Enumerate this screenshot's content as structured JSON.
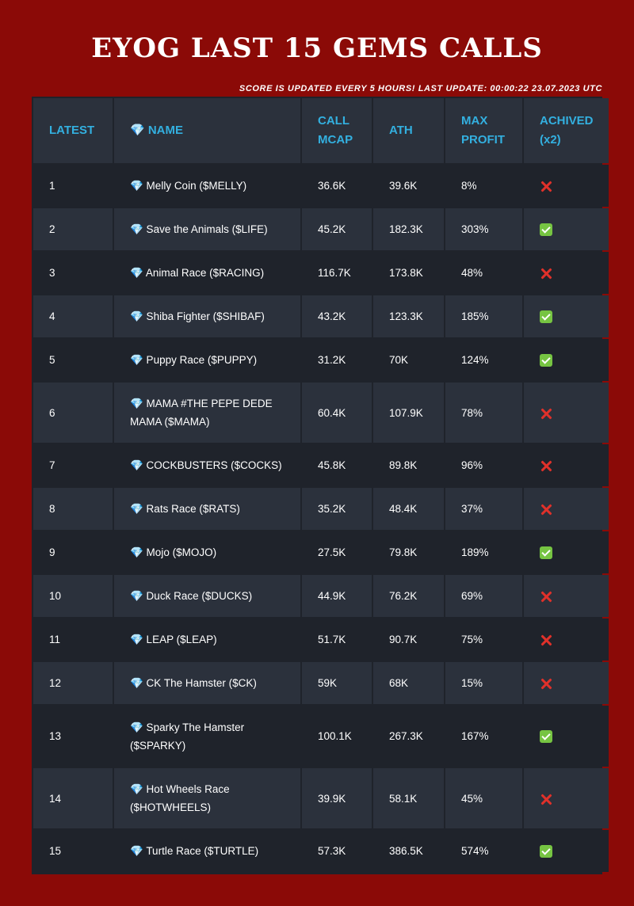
{
  "title": "EYOG LAST 15 GEMS CALLS",
  "update_note": "SCORE IS UPDATED EVERY 5 HOURS! LAST UPDATE: 00:00:22 23.07.2023 UTC",
  "headers": {
    "latest": "LATEST",
    "name": "💎 NAME",
    "call_mcap": "CALL MCAP",
    "ath": "ATH",
    "max_profit": "MAX PROFIT",
    "achived": "ACHIVED (x2)"
  },
  "rows": [
    {
      "n": "1",
      "name": "💎 Melly Coin ($MELLY)",
      "call": "36.6K",
      "ath": "39.6K",
      "profit": "8%",
      "achieved": false
    },
    {
      "n": "2",
      "name": "💎 Save the Animals ($LIFE)",
      "call": "45.2K",
      "ath": "182.3K",
      "profit": "303%",
      "achieved": true
    },
    {
      "n": "3",
      "name": "💎 Animal Race ($RACING)",
      "call": "116.7K",
      "ath": "173.8K",
      "profit": "48%",
      "achieved": false
    },
    {
      "n": "4",
      "name": "💎 Shiba Fighter ($SHIBAF)",
      "call": "43.2K",
      "ath": "123.3K",
      "profit": "185%",
      "achieved": true
    },
    {
      "n": "5",
      "name": "💎 Puppy Race ($PUPPY)",
      "call": "31.2K",
      "ath": "70K",
      "profit": "124%",
      "achieved": true
    },
    {
      "n": "6",
      "name": "💎 MAMA #THE PEPE DEDE MAMA ($MAMA)",
      "call": "60.4K",
      "ath": "107.9K",
      "profit": "78%",
      "achieved": false
    },
    {
      "n": "7",
      "name": "💎 COCKBUSTERS ($COCKS)",
      "call": "45.8K",
      "ath": "89.8K",
      "profit": "96%",
      "achieved": false
    },
    {
      "n": "8",
      "name": "💎 Rats Race ($RATS)",
      "call": "35.2K",
      "ath": "48.4K",
      "profit": "37%",
      "achieved": false
    },
    {
      "n": "9",
      "name": "💎 Mojo ($MOJO)",
      "call": "27.5K",
      "ath": "79.8K",
      "profit": "189%",
      "achieved": true
    },
    {
      "n": "10",
      "name": "💎 Duck Race ($DUCKS)",
      "call": "44.9K",
      "ath": "76.2K",
      "profit": "69%",
      "achieved": false
    },
    {
      "n": "11",
      "name": "💎 LEAP ($LEAP)",
      "call": "51.7K",
      "ath": "90.7K",
      "profit": "75%",
      "achieved": false
    },
    {
      "n": "12",
      "name": "💎 CK The Hamster ($CK)",
      "call": "59K",
      "ath": "68K",
      "profit": "15%",
      "achieved": false
    },
    {
      "n": "13",
      "name": "💎 Sparky The Hamster ($SPARKY)",
      "call": "100.1K",
      "ath": "267.3K",
      "profit": "167%",
      "achieved": true
    },
    {
      "n": "14",
      "name": "💎 Hot Wheels Race ($HOTWHEELS)",
      "call": "39.9K",
      "ath": "58.1K",
      "profit": "45%",
      "achieved": false
    },
    {
      "n": "15",
      "name": "💎 Turtle Race ($TURTLE)",
      "call": "57.3K",
      "ath": "386.5K",
      "profit": "574%",
      "achieved": true
    }
  ],
  "icons": {
    "achieved_true": "check-mark-icon",
    "achieved_false": "cross-mark-icon"
  },
  "colors": {
    "background": "#8b0a07",
    "table_dark": "#1f232b",
    "table_light": "#2b313c",
    "header_text": "#33b0e0",
    "check": "#76c442",
    "cross": "#e0312a"
  }
}
